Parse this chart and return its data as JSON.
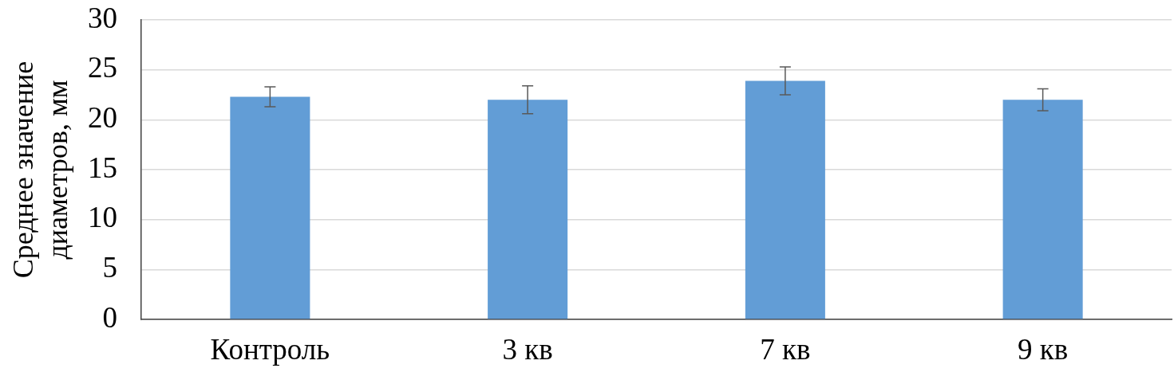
{
  "chart_data": {
    "type": "bar",
    "ylabel": "Среднее значение диаметров, мм",
    "categories": [
      "Контроль",
      "3 кв",
      "7 кв",
      "9 кв"
    ],
    "values": [
      22.3,
      22.0,
      23.9,
      22.0
    ],
    "errors": [
      1.0,
      1.4,
      1.4,
      1.1
    ],
    "color": "#629dd6",
    "ylim": [
      0,
      30
    ],
    "yticks": [
      0,
      5,
      10,
      15,
      20,
      25,
      30
    ],
    "grid": "y"
  }
}
